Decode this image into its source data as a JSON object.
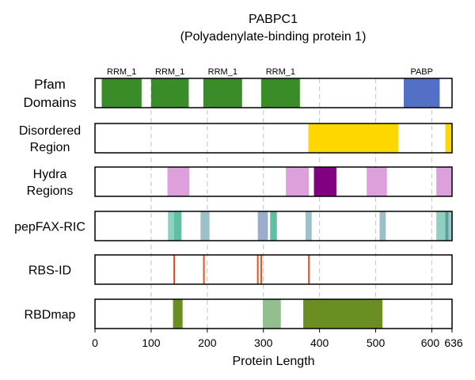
{
  "chart_data": {
    "type": "track",
    "title": [
      "PABPC1",
      "(Polyadenylate-binding protein 1)"
    ],
    "xlabel": "Protein Length",
    "xlim": [
      0,
      636
    ],
    "xticks": [
      0,
      100,
      200,
      300,
      400,
      500,
      600,
      636
    ],
    "grid_x": [
      100,
      200,
      300,
      400,
      500,
      600
    ],
    "tracks": [
      {
        "label": [
          "Pfam",
          "Domains"
        ],
        "segments": [
          {
            "start": 12,
            "end": 83,
            "color": "#3a8c28",
            "label": "RRM_1"
          },
          {
            "start": 100,
            "end": 167,
            "color": "#3a8c28",
            "label": "RRM_1"
          },
          {
            "start": 193,
            "end": 262,
            "color": "#3a8c28",
            "label": "RRM_1"
          },
          {
            "start": 296,
            "end": 365,
            "color": "#3a8c28",
            "label": "RRM_1"
          },
          {
            "start": 550,
            "end": 614,
            "color": "#5470c6",
            "label": "PABP"
          }
        ]
      },
      {
        "label": [
          "Disordered",
          "Region"
        ],
        "segments": [
          {
            "start": 380,
            "end": 540,
            "color": "#ffd700"
          },
          {
            "start": 624,
            "end": 636,
            "color": "#ffd700"
          }
        ]
      },
      {
        "label": [
          "Hydra",
          "Regions"
        ],
        "segments": [
          {
            "start": 129,
            "end": 168,
            "color": "#dda0dd"
          },
          {
            "start": 340,
            "end": 381,
            "color": "#dda0dd"
          },
          {
            "start": 390,
            "end": 430,
            "color": "#800080"
          },
          {
            "start": 484,
            "end": 520,
            "color": "#dda0dd"
          },
          {
            "start": 608,
            "end": 636,
            "color": "#dda0dd"
          }
        ]
      },
      {
        "label": [
          "pepFAX-RIC"
        ],
        "segments": [
          {
            "start": 130,
            "end": 141,
            "color": "#8fd0c0"
          },
          {
            "start": 141,
            "end": 154,
            "color": "#5fbfa0"
          },
          {
            "start": 188,
            "end": 204,
            "color": "#9dbfc8"
          },
          {
            "start": 290,
            "end": 308,
            "color": "#9aaecb"
          },
          {
            "start": 312,
            "end": 324,
            "color": "#5fbfa0"
          },
          {
            "start": 375,
            "end": 386,
            "color": "#9dbfc8"
          },
          {
            "start": 507,
            "end": 518,
            "color": "#9dbfc8"
          },
          {
            "start": 608,
            "end": 624,
            "color": "#8fd0c0"
          },
          {
            "start": 624,
            "end": 630,
            "color": "#5f9ea0"
          },
          {
            "start": 630,
            "end": 636,
            "color": "#8fd0c0"
          }
        ]
      },
      {
        "label": [
          "RBS-ID"
        ],
        "lines": [
          {
            "x": 141,
            "color": "#e8501c"
          },
          {
            "x": 194,
            "color": "#e8501c"
          },
          {
            "x": 290,
            "color": "#e8501c"
          },
          {
            "x": 296,
            "color": "#e8501c"
          },
          {
            "x": 381,
            "color": "#e8501c"
          }
        ]
      },
      {
        "label": [
          "RBDmap"
        ],
        "segments": [
          {
            "start": 139,
            "end": 156,
            "color": "#6b8e23"
          },
          {
            "start": 299,
            "end": 331,
            "color": "#93bf8e"
          },
          {
            "start": 371,
            "end": 512,
            "color": "#6b8e23"
          }
        ]
      }
    ]
  }
}
